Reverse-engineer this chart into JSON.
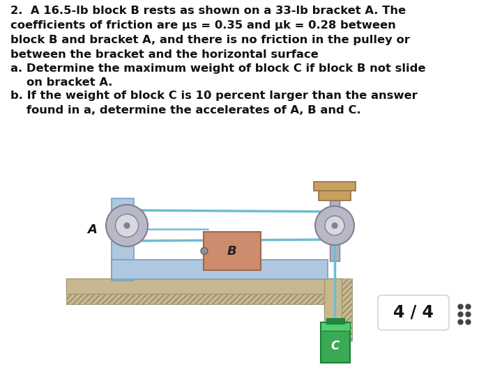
{
  "bg_color": "#ffffff",
  "text_lines": [
    "2.  A 16.5-lb block B rests as shown on a 33-lb bracket A. The",
    "coefficients of friction are μs = 0.35 and μk = 0.28 between",
    "block B and bracket A, and there is no friction in the pulley or",
    "between the bracket and the horizontal surface",
    "a. Determine the maximum weight of block C if block B not slide",
    "    on bracket A.",
    "b. If the weight of block C is 10 percent larger than the answer",
    "    found in a, determine the accelerates of A, B and C."
  ],
  "page_label": "4 / 4",
  "colors": {
    "bracket_fill": "#afc8e0",
    "bracket_edge": "#7aa0c0",
    "floor_fill": "#c8b890",
    "floor_edge": "#a89870",
    "block_B_fill": "#cd8c6e",
    "block_B_edge": "#a06848",
    "block_C_fill": "#3aaa55",
    "block_C_edge": "#1a8035",
    "pulley_outer": "#b8b8c8",
    "pulley_edge": "#808090",
    "pulley_inner": "#d8d8e0",
    "rope_color": "#70bcd0",
    "cap_fill": "#c8a060",
    "cap_edge": "#907040",
    "post_fill": "#b0b0c0",
    "post_edge": "#808090",
    "wall_fill": "#c8b890",
    "wall_edge": "#a89870"
  }
}
